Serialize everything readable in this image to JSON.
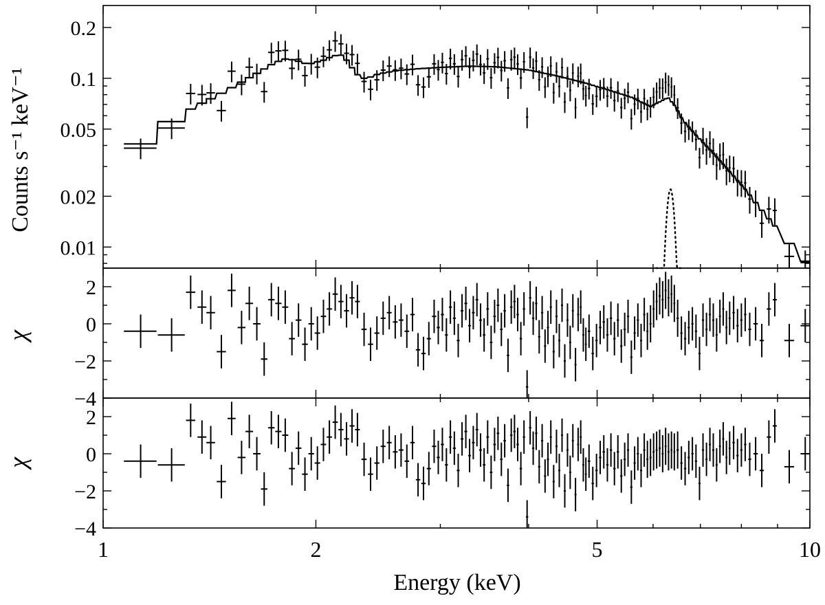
{
  "chart_data": {
    "type": "step-spectrum",
    "x_label": "Energy (keV)",
    "x_scale": "log",
    "x_range": [
      1,
      10
    ],
    "x_ticks": [
      {
        "value": 1,
        "label": "1"
      },
      {
        "value": 2,
        "label": "2"
      },
      {
        "value": 5,
        "label": "5"
      },
      {
        "value": 10,
        "label": "10"
      }
    ],
    "panels": [
      {
        "id": "spectrum",
        "ylabel": "Counts s⁻¹ keV⁻¹",
        "y_scale": "log",
        "ylim": [
          0.0075,
          0.27
        ],
        "y_ticks": [
          {
            "value": 0.01,
            "label": "0.01"
          },
          {
            "value": 0.02,
            "label": "0.02"
          },
          {
            "value": 0.05,
            "label": "0.05"
          },
          {
            "value": 0.1,
            "label": "0.1"
          },
          {
            "value": 0.2,
            "label": "0.2"
          }
        ],
        "model_points": [
          [
            1.12,
            0.04
          ],
          [
            1.2,
            0.047
          ],
          [
            1.27,
            0.059
          ],
          [
            1.35,
            0.068
          ],
          [
            1.45,
            0.079
          ],
          [
            1.55,
            0.092
          ],
          [
            1.65,
            0.107
          ],
          [
            1.75,
            0.124
          ],
          [
            1.82,
            0.131
          ],
          [
            1.88,
            0.127
          ],
          [
            1.95,
            0.121
          ],
          [
            2.05,
            0.128
          ],
          [
            2.12,
            0.136
          ],
          [
            2.17,
            0.137
          ],
          [
            2.22,
            0.126
          ],
          [
            2.28,
            0.106
          ],
          [
            2.35,
            0.099
          ],
          [
            2.45,
            0.106
          ],
          [
            2.6,
            0.111
          ],
          [
            2.8,
            0.114
          ],
          [
            3.0,
            0.116
          ],
          [
            3.3,
            0.118
          ],
          [
            3.6,
            0.117
          ],
          [
            4.0,
            0.112
          ],
          [
            4.4,
            0.103
          ],
          [
            4.8,
            0.094
          ],
          [
            5.2,
            0.085
          ],
          [
            5.6,
            0.077
          ],
          [
            5.95,
            0.068
          ],
          [
            6.15,
            0.073
          ],
          [
            6.3,
            0.077
          ],
          [
            6.45,
            0.068
          ],
          [
            6.6,
            0.057
          ],
          [
            6.9,
            0.046
          ],
          [
            7.3,
            0.036
          ],
          [
            7.7,
            0.028
          ],
          [
            8.1,
            0.022
          ],
          [
            8.5,
            0.017
          ],
          [
            8.9,
            0.0135
          ],
          [
            9.3,
            0.0108
          ],
          [
            9.7,
            0.0087
          ],
          [
            10.0,
            0.0078
          ]
        ],
        "gaussian_line": {
          "center_keV": 6.35,
          "peak": 0.022,
          "sigma_keV": 0.09
        }
      },
      {
        "id": "residuals-1",
        "ylabel": "χ",
        "y_scale": "linear",
        "ylim": [
          -4,
          3
        ],
        "y_ticks": [
          {
            "value": -4,
            "label": "−4"
          },
          {
            "value": -2,
            "label": "−2"
          },
          {
            "value": 0,
            "label": "0"
          },
          {
            "value": 2,
            "label": "2"
          }
        ]
      },
      {
        "id": "residuals-2",
        "ylabel": "χ",
        "y_scale": "linear",
        "ylim": [
          -4,
          3
        ],
        "y_ticks": [
          {
            "value": -4,
            "label": "−4"
          },
          {
            "value": -2,
            "label": "−2"
          },
          {
            "value": 0,
            "label": "0"
          },
          {
            "value": 2,
            "label": "2"
          }
        ]
      }
    ],
    "bins": [
      {
        "e": 1.13,
        "de": 0.06,
        "r1": -0.4,
        "r2": -0.4
      },
      {
        "e": 1.25,
        "de": 0.055,
        "r1": -0.6,
        "r2": -0.6
      },
      {
        "e": 1.33,
        "de": 0.02,
        "r1": 1.7,
        "r2": 1.8
      },
      {
        "e": 1.38,
        "de": 0.02,
        "r1": 0.9,
        "r2": 0.9
      },
      {
        "e": 1.42,
        "de": 0.02,
        "r1": 0.6,
        "r2": 0.6
      },
      {
        "e": 1.47,
        "de": 0.022,
        "r1": -1.5,
        "r2": -1.5
      },
      {
        "e": 1.52,
        "de": 0.02,
        "r1": 1.8,
        "r2": 1.9
      },
      {
        "e": 1.57,
        "de": 0.02,
        "r1": -0.2,
        "r2": -0.2
      },
      {
        "e": 1.61,
        "de": 0.02,
        "r1": 1.1,
        "r2": 1.2
      },
      {
        "e": 1.65,
        "de": 0.02,
        "r1": 0.0,
        "r2": 0.0
      },
      {
        "e": 1.69,
        "de": 0.018,
        "r1": -1.9,
        "r2": -1.9
      },
      {
        "e": 1.73,
        "de": 0.018,
        "r1": 1.3,
        "r2": 1.4
      },
      {
        "e": 1.77,
        "de": 0.018,
        "r1": 1.1,
        "r2": 1.2
      },
      {
        "e": 1.81,
        "de": 0.018,
        "r1": 0.9,
        "r2": 1.0
      },
      {
        "e": 1.85,
        "de": 0.018,
        "r1": -0.8,
        "r2": -0.8
      },
      {
        "e": 1.89,
        "de": 0.018,
        "r1": 0.2,
        "r2": 0.3
      },
      {
        "e": 1.93,
        "de": 0.018,
        "r1": -1.1,
        "r2": -1.1
      },
      {
        "e": 1.97,
        "de": 0.018,
        "r1": 0.0,
        "r2": 0.0
      },
      {
        "e": 2.01,
        "de": 0.018,
        "r1": -0.5,
        "r2": -0.5
      },
      {
        "e": 2.05,
        "de": 0.018,
        "r1": 0.4,
        "r2": 0.5
      },
      {
        "e": 2.09,
        "de": 0.018,
        "r1": 0.8,
        "r2": 0.9
      },
      {
        "e": 2.13,
        "de": 0.018,
        "r1": 1.6,
        "r2": 1.7
      },
      {
        "e": 2.17,
        "de": 0.018,
        "r1": 1.2,
        "r2": 1.3
      },
      {
        "e": 2.21,
        "de": 0.018,
        "r1": 0.7,
        "r2": 0.8
      },
      {
        "e": 2.25,
        "de": 0.018,
        "r1": 1.4,
        "r2": 1.5
      },
      {
        "e": 2.29,
        "de": 0.018,
        "r1": 1.2,
        "r2": 1.3
      },
      {
        "e": 2.34,
        "de": 0.02,
        "r1": -0.3,
        "r2": -0.3
      },
      {
        "e": 2.39,
        "de": 0.02,
        "r1": -1.1,
        "r2": -1.1
      },
      {
        "e": 2.44,
        "de": 0.02,
        "r1": -0.5,
        "r2": -0.5
      },
      {
        "e": 2.49,
        "de": 0.02,
        "r1": 0.3,
        "r2": 0.4
      },
      {
        "e": 2.54,
        "de": 0.02,
        "r1": 0.6,
        "r2": 0.6
      },
      {
        "e": 2.59,
        "de": 0.02,
        "r1": 0.1,
        "r2": 0.1
      },
      {
        "e": 2.64,
        "de": 0.02,
        "r1": 0.2,
        "r2": 0.2
      },
      {
        "e": 2.69,
        "de": 0.02,
        "r1": -0.4,
        "r2": -0.4
      },
      {
        "e": 2.74,
        "de": 0.02,
        "r1": 0.5,
        "r2": 0.6
      },
      {
        "e": 2.79,
        "de": 0.02,
        "r1": -1.4,
        "r2": -1.4
      },
      {
        "e": 2.84,
        "de": 0.02,
        "r1": -1.6,
        "r2": -1.6
      },
      {
        "e": 2.89,
        "de": 0.02,
        "r1": -0.8,
        "r2": -0.8
      },
      {
        "e": 2.94,
        "de": 0.02,
        "r1": 0.4,
        "r2": 0.4
      },
      {
        "e": 2.98,
        "de": 0.015,
        "r1": -0.2,
        "r2": -0.2
      },
      {
        "e": 3.02,
        "de": 0.015,
        "r1": 0.5,
        "r2": 0.5
      },
      {
        "e": 3.06,
        "de": 0.015,
        "r1": -0.6,
        "r2": -0.6
      },
      {
        "e": 3.1,
        "de": 0.015,
        "r1": 0.9,
        "r2": 0.9
      },
      {
        "e": 3.14,
        "de": 0.015,
        "r1": 0.3,
        "r2": 0.3
      },
      {
        "e": 3.18,
        "de": 0.015,
        "r1": -0.9,
        "r2": -0.9
      },
      {
        "e": 3.22,
        "de": 0.015,
        "r1": 0.7,
        "r2": 0.8
      },
      {
        "e": 3.26,
        "de": 0.015,
        "r1": 1.1,
        "r2": 1.2
      },
      {
        "e": 3.3,
        "de": 0.015,
        "r1": -0.1,
        "r2": -0.1
      },
      {
        "e": 3.34,
        "de": 0.015,
        "r1": 0.6,
        "r2": 0.6
      },
      {
        "e": 3.38,
        "de": 0.015,
        "r1": 1.3,
        "r2": 1.3
      },
      {
        "e": 3.42,
        "de": 0.015,
        "r1": 0.2,
        "r2": 0.2
      },
      {
        "e": 3.46,
        "de": 0.015,
        "r1": -0.6,
        "r2": -0.6
      },
      {
        "e": 3.5,
        "de": 0.015,
        "r1": 0.8,
        "r2": 0.9
      },
      {
        "e": 3.54,
        "de": 0.015,
        "r1": -1.0,
        "r2": -1.0
      },
      {
        "e": 3.58,
        "de": 0.015,
        "r1": 0.4,
        "r2": 0.5
      },
      {
        "e": 3.62,
        "de": 0.015,
        "r1": 1.0,
        "r2": 1.1
      },
      {
        "e": 3.66,
        "de": 0.015,
        "r1": -0.3,
        "r2": -0.3
      },
      {
        "e": 3.7,
        "de": 0.015,
        "r1": 0.7,
        "r2": 0.7
      },
      {
        "e": 3.74,
        "de": 0.015,
        "r1": -1.7,
        "r2": -1.7
      },
      {
        "e": 3.78,
        "de": 0.015,
        "r1": 0.9,
        "r2": 1.0
      },
      {
        "e": 3.82,
        "de": 0.015,
        "r1": 1.2,
        "r2": 1.2
      },
      {
        "e": 3.86,
        "de": 0.015,
        "r1": 0.5,
        "r2": 0.5
      },
      {
        "e": 3.9,
        "de": 0.015,
        "r1": -0.8,
        "r2": -0.8
      },
      {
        "e": 3.94,
        "de": 0.015,
        "r1": 0.8,
        "r2": 0.9
      },
      {
        "e": 3.98,
        "de": 0.015,
        "r1": -3.4,
        "r2": -3.4
      },
      {
        "e": 4.02,
        "de": 0.015,
        "r1": 1.4,
        "r2": 1.4
      },
      {
        "e": 4.06,
        "de": 0.015,
        "r1": 0.3,
        "r2": 0.3
      },
      {
        "e": 4.1,
        "de": 0.015,
        "r1": 1.1,
        "r2": 1.1
      },
      {
        "e": 4.14,
        "de": 0.015,
        "r1": -0.7,
        "r2": -0.7
      },
      {
        "e": 4.18,
        "de": 0.015,
        "r1": 0.6,
        "r2": 0.7
      },
      {
        "e": 4.22,
        "de": 0.015,
        "r1": -1.2,
        "r2": -1.2
      },
      {
        "e": 4.26,
        "de": 0.015,
        "r1": -0.2,
        "r2": -0.3
      },
      {
        "e": 4.3,
        "de": 0.015,
        "r1": 0.9,
        "r2": 0.9
      },
      {
        "e": 4.34,
        "de": 0.015,
        "r1": -1.5,
        "r2": -1.5
      },
      {
        "e": 4.38,
        "de": 0.015,
        "r1": 0.4,
        "r2": 0.4
      },
      {
        "e": 4.42,
        "de": 0.015,
        "r1": -0.9,
        "r2": -0.9
      },
      {
        "e": 4.46,
        "de": 0.015,
        "r1": 1.0,
        "r2": 1.0
      },
      {
        "e": 4.5,
        "de": 0.015,
        "r1": -2.0,
        "r2": -2.0
      },
      {
        "e": 4.54,
        "de": 0.015,
        "r1": 0.2,
        "r2": 0.2
      },
      {
        "e": 4.58,
        "de": 0.015,
        "r1": -1.0,
        "r2": -1.0
      },
      {
        "e": 4.62,
        "de": 0.015,
        "r1": 0.7,
        "r2": 0.7
      },
      {
        "e": 4.66,
        "de": 0.015,
        "r1": -2.2,
        "r2": -2.2
      },
      {
        "e": 4.7,
        "de": 0.015,
        "r1": 0.5,
        "r2": 0.5
      },
      {
        "e": 4.74,
        "de": 0.015,
        "r1": 0.9,
        "r2": 0.9
      },
      {
        "e": 4.78,
        "de": 0.015,
        "r1": -0.6,
        "r2": -0.6
      },
      {
        "e": 4.82,
        "de": 0.015,
        "r1": -1.1,
        "r2": -1.1
      },
      {
        "e": 4.87,
        "de": 0.02,
        "r1": -0.4,
        "r2": -0.4
      },
      {
        "e": 4.93,
        "de": 0.02,
        "r1": -1.6,
        "r2": -1.6
      },
      {
        "e": 4.99,
        "de": 0.02,
        "r1": -0.9,
        "r2": -0.9
      },
      {
        "e": 5.05,
        "de": 0.02,
        "r1": -0.2,
        "r2": -0.2
      },
      {
        "e": 5.11,
        "de": 0.02,
        "r1": 0.1,
        "r2": 0.1
      },
      {
        "e": 5.17,
        "de": 0.02,
        "r1": -0.6,
        "r2": -0.6
      },
      {
        "e": 5.23,
        "de": 0.02,
        "r1": 0.3,
        "r2": 0.2
      },
      {
        "e": 5.29,
        "de": 0.02,
        "r1": -0.8,
        "r2": -0.8
      },
      {
        "e": 5.35,
        "de": 0.02,
        "r1": 0.2,
        "r2": 0.1
      },
      {
        "e": 5.41,
        "de": 0.02,
        "r1": -1.2,
        "r2": -1.2
      },
      {
        "e": 5.47,
        "de": 0.02,
        "r1": -0.3,
        "r2": -0.3
      },
      {
        "e": 5.53,
        "de": 0.02,
        "r1": 0.4,
        "r2": 0.2
      },
      {
        "e": 5.59,
        "de": 0.02,
        "r1": -1.8,
        "r2": -1.8
      },
      {
        "e": 5.65,
        "de": 0.02,
        "r1": -0.5,
        "r2": -0.5
      },
      {
        "e": 5.71,
        "de": 0.02,
        "r1": 0.2,
        "r2": 0.0
      },
      {
        "e": 5.77,
        "de": 0.02,
        "r1": -0.9,
        "r2": -0.9
      },
      {
        "e": 5.83,
        "de": 0.02,
        "r1": 0.5,
        "r2": 0.2
      },
      {
        "e": 5.89,
        "de": 0.02,
        "r1": -0.4,
        "r2": -0.3
      },
      {
        "e": 5.95,
        "de": 0.02,
        "r1": 0.0,
        "r2": -0.2
      },
      {
        "e": 6.01,
        "de": 0.02,
        "r1": 0.8,
        "r2": 0.1
      },
      {
        "e": 6.07,
        "de": 0.02,
        "r1": 1.2,
        "r2": 0.2
      },
      {
        "e": 6.13,
        "de": 0.02,
        "r1": 1.5,
        "r2": 0.3
      },
      {
        "e": 6.19,
        "de": 0.02,
        "r1": 1.3,
        "r2": 0.0
      },
      {
        "e": 6.25,
        "de": 0.02,
        "r1": 1.8,
        "r2": 0.4
      },
      {
        "e": 6.31,
        "de": 0.02,
        "r1": 1.4,
        "r2": 0.1
      },
      {
        "e": 6.37,
        "de": 0.02,
        "r1": 1.6,
        "r2": 0.2
      },
      {
        "e": 6.43,
        "de": 0.02,
        "r1": 1.1,
        "r2": 0.1
      },
      {
        "e": 6.5,
        "de": 0.025,
        "r1": 0.3,
        "r2": 0.2
      },
      {
        "e": 6.58,
        "de": 0.025,
        "r1": -0.5,
        "r2": -0.5
      },
      {
        "e": 6.66,
        "de": 0.025,
        "r1": -0.8,
        "r2": -0.8
      },
      {
        "e": 6.74,
        "de": 0.025,
        "r1": -0.2,
        "r2": -0.2
      },
      {
        "e": 6.82,
        "de": 0.025,
        "r1": 0.0,
        "r2": 0.0
      },
      {
        "e": 6.9,
        "de": 0.025,
        "r1": -0.4,
        "r2": -0.4
      },
      {
        "e": 6.98,
        "de": 0.025,
        "r1": -1.6,
        "r2": -1.6
      },
      {
        "e": 7.06,
        "de": 0.025,
        "r1": 0.2,
        "r2": 0.2
      },
      {
        "e": 7.14,
        "de": 0.025,
        "r1": -0.3,
        "r2": -0.3
      },
      {
        "e": 7.22,
        "de": 0.025,
        "r1": 0.5,
        "r2": 0.5
      },
      {
        "e": 7.3,
        "de": 0.025,
        "r1": 0.2,
        "r2": 0.2
      },
      {
        "e": 7.38,
        "de": 0.025,
        "r1": -0.6,
        "r2": -0.6
      },
      {
        "e": 7.46,
        "de": 0.025,
        "r1": 0.4,
        "r2": 0.4
      },
      {
        "e": 7.54,
        "de": 0.025,
        "r1": 0.8,
        "r2": 0.8
      },
      {
        "e": 7.62,
        "de": 0.025,
        "r1": -0.2,
        "r2": -0.2
      },
      {
        "e": 7.7,
        "de": 0.025,
        "r1": 0.3,
        "r2": 0.3
      },
      {
        "e": 7.8,
        "de": 0.03,
        "r1": 0.6,
        "r2": 0.6
      },
      {
        "e": 7.9,
        "de": 0.03,
        "r1": -0.1,
        "r2": -0.1
      },
      {
        "e": 8.0,
        "de": 0.03,
        "r1": 0.2,
        "r2": 0.2
      },
      {
        "e": 8.1,
        "de": 0.03,
        "r1": 0.5,
        "r2": 0.5
      },
      {
        "e": 8.22,
        "de": 0.04,
        "r1": -0.3,
        "r2": -0.3
      },
      {
        "e": 8.38,
        "de": 0.06,
        "r1": 0.0,
        "r2": 0.0
      },
      {
        "e": 8.55,
        "de": 0.06,
        "r1": -0.9,
        "r2": -0.9
      },
      {
        "e": 8.75,
        "de": 0.06,
        "r1": 0.8,
        "r2": 0.9
      },
      {
        "e": 8.92,
        "de": 0.06,
        "r1": 1.3,
        "r2": 1.5
      },
      {
        "e": 9.35,
        "de": 0.15,
        "r1": -0.9,
        "r2": -0.7
      },
      {
        "e": 9.85,
        "de": 0.15,
        "r1": -0.1,
        "r2": 0.0
      }
    ]
  },
  "ui": {
    "ylabel_counts": "Counts s⁻¹ keV⁻¹",
    "ylabel_chi": "χ",
    "xlabel": "Energy (keV)"
  }
}
